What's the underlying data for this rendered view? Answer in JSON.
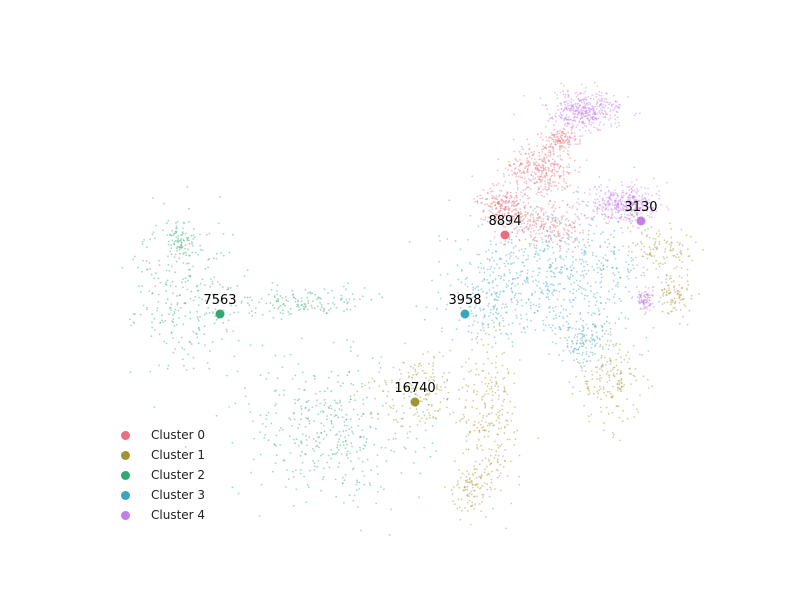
{
  "chart_data": {
    "type": "scatter",
    "title": "",
    "xlabel": "",
    "ylabel": "",
    "axes_visible": false,
    "grid": false,
    "legend_position": "lower-left",
    "series": [
      {
        "name": "Cluster 0",
        "color": "#e8707e",
        "count_label": "8894",
        "centroid": [
          505,
          235
        ],
        "regions": [
          [
            540,
            170,
            28,
            22,
            0.35
          ],
          [
            505,
            205,
            22,
            14,
            0.25
          ],
          [
            545,
            225,
            35,
            18,
            0.25
          ],
          [
            560,
            140,
            15,
            10,
            0.15
          ]
        ]
      },
      {
        "name": "Cluster 1",
        "color": "#a39432",
        "count_label": "16740",
        "centroid": [
          415,
          402
        ],
        "regions": [
          [
            420,
            390,
            35,
            35,
            0.18
          ],
          [
            490,
            420,
            25,
            70,
            0.3
          ],
          [
            610,
            380,
            28,
            38,
            0.2
          ],
          [
            675,
            295,
            14,
            20,
            0.1
          ],
          [
            660,
            250,
            28,
            18,
            0.12
          ],
          [
            470,
            490,
            14,
            20,
            0.1
          ]
        ]
      },
      {
        "name": "Cluster 2",
        "color": "#33a874",
        "count_label": "7563",
        "centroid": [
          220,
          314
        ],
        "regions": [
          [
            185,
            300,
            45,
            65,
            0.28
          ],
          [
            300,
            302,
            70,
            12,
            0.17
          ],
          [
            330,
            430,
            75,
            60,
            0.45
          ],
          [
            180,
            240,
            20,
            15,
            0.1
          ]
        ]
      },
      {
        "name": "Cluster 3",
        "color": "#3aa5bf",
        "count_label": "3958",
        "centroid": [
          465,
          314
        ],
        "regions": [
          [
            560,
            270,
            75,
            50,
            0.65
          ],
          [
            490,
            300,
            35,
            40,
            0.2
          ],
          [
            585,
            340,
            20,
            25,
            0.15
          ]
        ]
      },
      {
        "name": "Cluster 4",
        "color": "#c57ee8",
        "count_label": "3130",
        "centroid": [
          641,
          221
        ],
        "regions": [
          [
            585,
            110,
            28,
            16,
            0.45
          ],
          [
            625,
            205,
            30,
            15,
            0.45
          ],
          [
            645,
            300,
            7,
            8,
            0.1
          ]
        ]
      }
    ]
  }
}
